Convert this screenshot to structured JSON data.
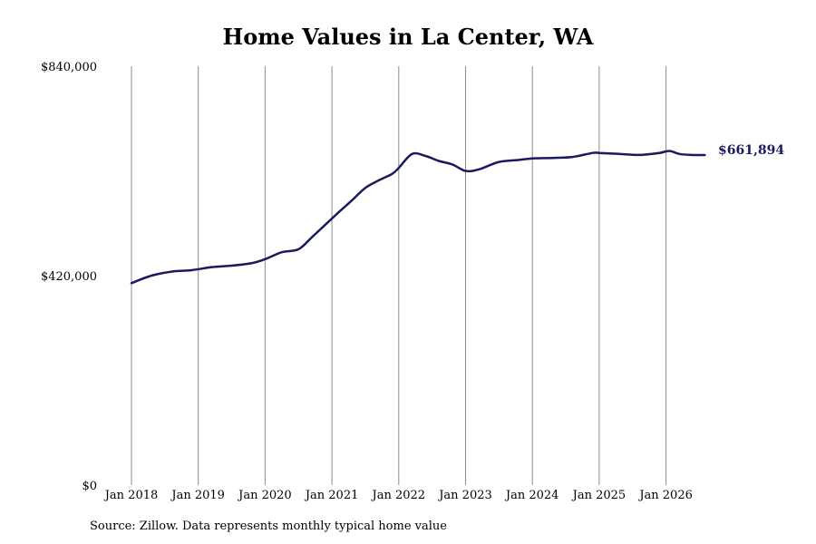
{
  "chart_data": {
    "type": "line",
    "title": "Home Values in La Center, WA",
    "source_note": "Source: Zillow. Data represents monthly typical home value",
    "xlabel": "",
    "ylabel": "",
    "ylim": [
      0,
      840000
    ],
    "yticks": [
      {
        "value": 0,
        "label": "$0"
      },
      {
        "value": 420000,
        "label": "$420,000"
      },
      {
        "value": 840000,
        "label": "$840,000"
      }
    ],
    "xticks": [
      {
        "value": 2018.0,
        "label": "Jan 2018"
      },
      {
        "value": 2019.0,
        "label": "Jan 2019"
      },
      {
        "value": 2020.0,
        "label": "Jan 2020"
      },
      {
        "value": 2021.0,
        "label": "Jan 2021"
      },
      {
        "value": 2022.0,
        "label": "Jan 2022"
      },
      {
        "value": 2023.0,
        "label": "Jan 2023"
      },
      {
        "value": 2024.0,
        "label": "Jan 2024"
      },
      {
        "value": 2025.0,
        "label": "Jan 2025"
      },
      {
        "value": 2026.0,
        "label": "Jan 2026"
      }
    ],
    "xlim": [
      2018.0,
      2026.6
    ],
    "grid": "vertical",
    "line_color": "#1a1a5e",
    "end_label": "$661,894",
    "series": [
      {
        "x": [
          2018.0,
          2018.3,
          2018.6,
          2018.9,
          2019.2,
          2019.5,
          2019.8,
          2020.0,
          2020.25,
          2020.5,
          2020.7,
          2020.9,
          2021.1,
          2021.3,
          2021.5,
          2021.7,
          2021.9,
          2022.0,
          2022.2,
          2022.4,
          2022.6,
          2022.8,
          2023.0,
          2023.2,
          2023.5,
          2023.8,
          2024.0,
          2024.3,
          2024.6,
          2024.9,
          2025.0,
          2025.3,
          2025.6,
          2025.9,
          2026.05,
          2026.2,
          2026.4,
          2026.58
        ],
        "y": [
          405000,
          420000,
          428000,
          431000,
          437000,
          440000,
          445000,
          453000,
          467000,
          473000,
          497000,
          522000,
          547000,
          571000,
          596000,
          611000,
          624000,
          636000,
          664000,
          660000,
          650000,
          643000,
          630000,
          633000,
          648000,
          652000,
          655000,
          656000,
          658000,
          666000,
          666000,
          664000,
          662000,
          666000,
          670000,
          664000,
          661894,
          661894
        ]
      }
    ]
  }
}
